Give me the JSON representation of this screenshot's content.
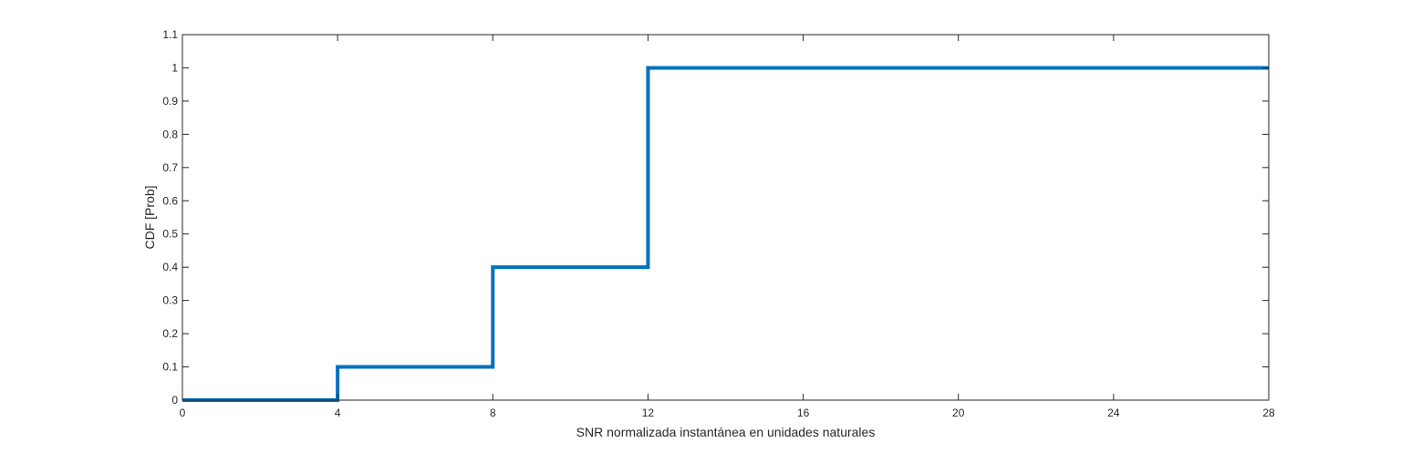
{
  "chart_data": {
    "type": "line",
    "style": "stairs",
    "title": "",
    "xlabel": "SNR normalizada instantánea en unidades naturales",
    "ylabel": "CDF [Prob]",
    "xlim": [
      0,
      28
    ],
    "ylim": [
      0,
      1.1
    ],
    "xticks": [
      0,
      4,
      8,
      12,
      16,
      20,
      24,
      28
    ],
    "yticks": [
      0,
      0.1,
      0.2,
      0.3,
      0.4,
      0.5,
      0.6,
      0.7,
      0.8,
      0.9,
      1,
      1.1
    ],
    "xtick_labels": [
      "0",
      "4",
      "8",
      "12",
      "16",
      "20",
      "24",
      "28"
    ],
    "ytick_labels": [
      "0",
      "0.1",
      "0.2",
      "0.3",
      "0.4",
      "0.5",
      "0.6",
      "0.7",
      "0.8",
      "0.9",
      "1",
      "1.1"
    ],
    "grid": false,
    "series": [
      {
        "color": "#0072BD",
        "x": [
          0,
          4,
          4,
          8,
          8,
          12,
          12,
          28
        ],
        "y": [
          0,
          0,
          0.1,
          0.1,
          0.4,
          0.4,
          1,
          1
        ]
      }
    ]
  }
}
